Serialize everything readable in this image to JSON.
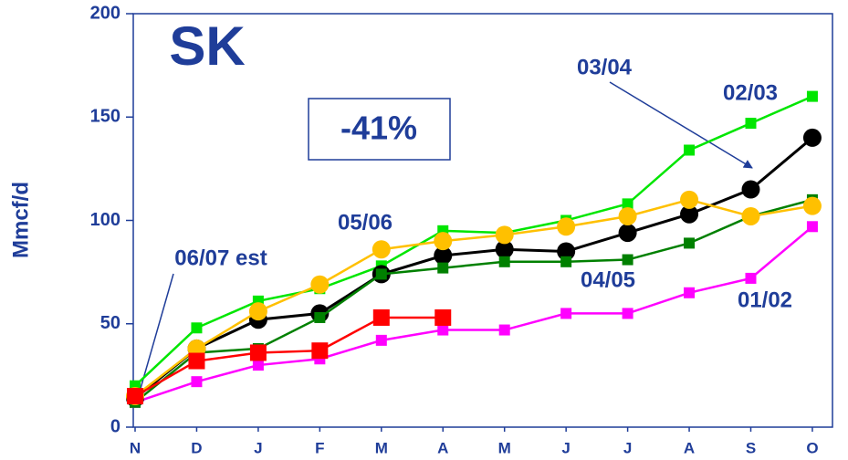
{
  "chart_data": {
    "type": "line",
    "title": "SK",
    "annotation": "-41%",
    "y_label": "Mmcf/d",
    "categories": [
      "N",
      "D",
      "J",
      "F",
      "M",
      "A",
      "M",
      "J",
      "J",
      "A",
      "S",
      "O"
    ],
    "ylim": [
      0,
      200
    ],
    "yticks": [
      0,
      50,
      100,
      150,
      200
    ],
    "series": [
      {
        "name": "01/02",
        "color": "#ff00ff",
        "marker": "square",
        "values": [
          12,
          22,
          30,
          33,
          42,
          47,
          47,
          55,
          55,
          65,
          72,
          97
        ]
      },
      {
        "name": "02/03",
        "color": "#00e600",
        "marker": "square",
        "values": [
          20,
          48,
          61,
          67,
          78,
          95,
          94,
          100,
          108,
          134,
          147,
          160
        ]
      },
      {
        "name": "03/04",
        "color": "#000000",
        "marker": "circle",
        "values": [
          14,
          38,
          52,
          55,
          74,
          83,
          86,
          85,
          94,
          103,
          115,
          140
        ]
      },
      {
        "name": "04/05",
        "color": "#008000",
        "marker": "square",
        "values": [
          12,
          36,
          38,
          53,
          74,
          77,
          80,
          80,
          81,
          89,
          102,
          110
        ]
      },
      {
        "name": "05/06",
        "color": "#ffc000",
        "marker": "circle",
        "values": [
          15,
          38,
          56,
          69,
          86,
          90,
          93,
          97,
          102,
          110,
          102,
          107
        ]
      },
      {
        "name": "06/07 est",
        "color": "#ff0000",
        "marker": "square",
        "values": [
          15,
          32,
          36,
          37,
          53,
          53,
          null,
          null,
          null,
          null,
          null,
          null
        ]
      }
    ]
  }
}
